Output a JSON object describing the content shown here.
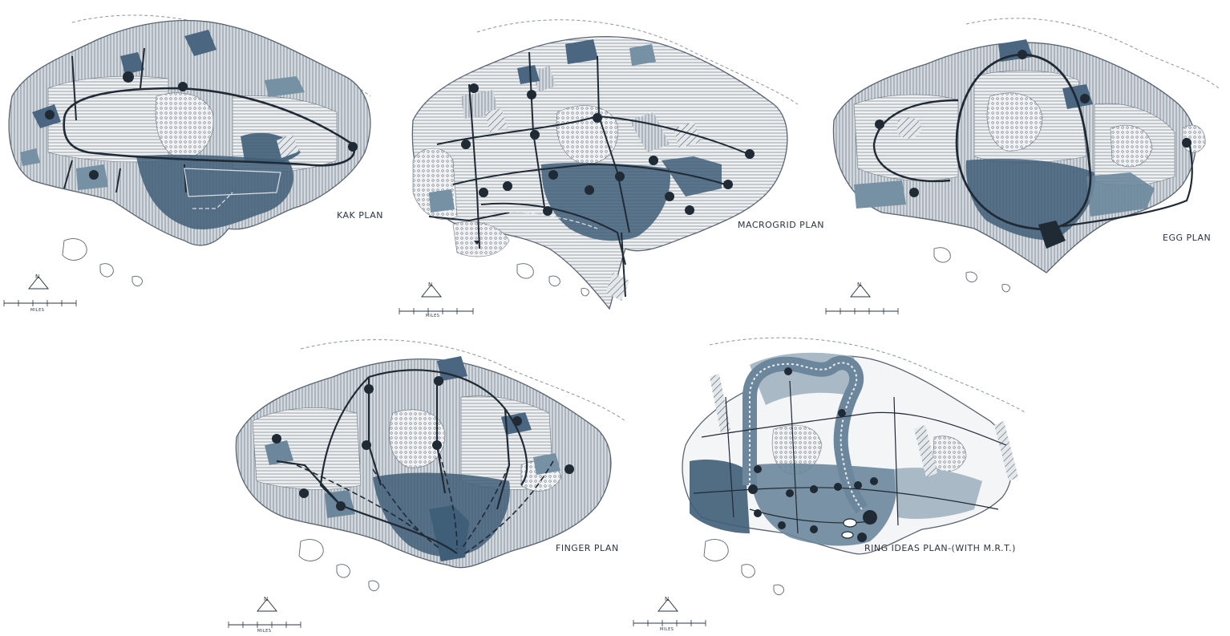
{
  "panels": [
    {
      "id": "kak",
      "label": "KAK PLAN",
      "arrow_text": "N",
      "scale_text": "MILES"
    },
    {
      "id": "macrogrid",
      "label": "MACROGRID PLAN",
      "arrow_text": "N",
      "scale_text": "MILES"
    },
    {
      "id": "egg",
      "label": "EGG PLAN",
      "arrow_text": "N",
      "scale_text": ""
    },
    {
      "id": "finger",
      "label": "FINGER PLAN",
      "arrow_text": "N",
      "scale_text": "MILES"
    },
    {
      "id": "ring",
      "label": "RING IDEAS PLAN-(WITH M.R.T.)",
      "arrow_text": "N",
      "scale_text": "MILES"
    }
  ],
  "colors": {
    "ink": "#2b3440",
    "dark_blue": "#3f5e78",
    "mid_blue": "#6c879c",
    "light_blue": "#a9b9c6",
    "pale_gray": "#d6dbe0",
    "outline": "#5a6470"
  }
}
